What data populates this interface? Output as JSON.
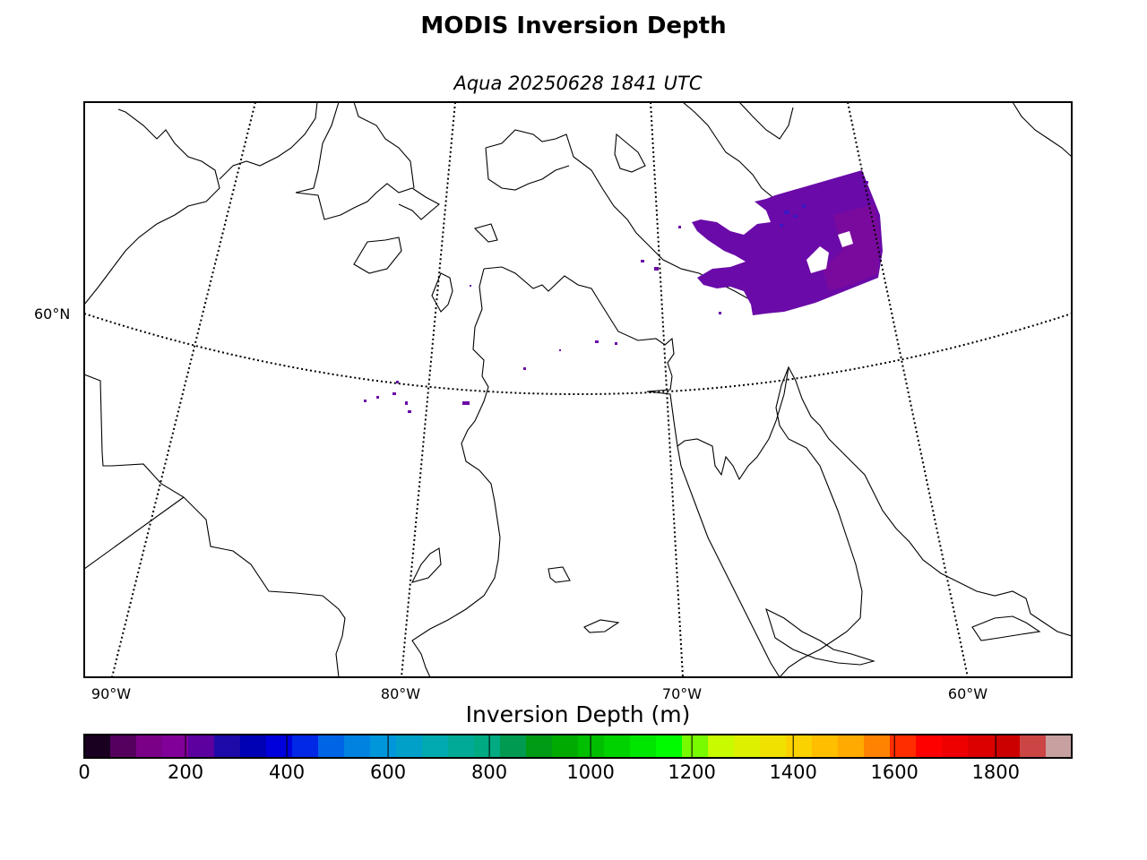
{
  "title": "MODIS Inversion Depth",
  "subtitle": "Aqua 20250628 1841 UTC",
  "map": {
    "projection": "lambert-conformal",
    "lat_labels": [
      "60°N"
    ],
    "lon_labels": [
      "90°W",
      "80°W",
      "70°W",
      "60°W"
    ],
    "graticule_style": "dotted",
    "data_swath_color": "#6a0aa8",
    "data_swath_dense_color": "#7a0a9e",
    "data_swath_scattered_color": "#3a17c4"
  },
  "colorbar": {
    "title": "Inversion Depth (m)",
    "min": 0,
    "max": 1950,
    "tick_labels": [
      "0",
      "200",
      "400",
      "600",
      "800",
      "1000",
      "1200",
      "1400",
      "1600",
      "1800"
    ],
    "tick_values": [
      0,
      200,
      400,
      600,
      800,
      1000,
      1200,
      1400,
      1600,
      1800
    ],
    "colors": [
      "#1a0020",
      "#55005f",
      "#7a0088",
      "#82009a",
      "#5c00a0",
      "#1e0aa8",
      "#0000b4",
      "#0000dc",
      "#0028e6",
      "#0064e6",
      "#0082e1",
      "#0096dc",
      "#00a0c8",
      "#00aaaf",
      "#00aa96",
      "#00aa82",
      "#009b50",
      "#009b14",
      "#00aa00",
      "#00be00",
      "#00d200",
      "#00e600",
      "#00fa00",
      "#78fa00",
      "#c8fa00",
      "#dcf000",
      "#f0e100",
      "#fad200",
      "#ffbe00",
      "#ffaa00",
      "#ff8200",
      "#ff2d00",
      "#ff0000",
      "#ee0000",
      "#dc0000",
      "#cd0000",
      "#cc4545",
      "#c8a0a0"
    ]
  }
}
